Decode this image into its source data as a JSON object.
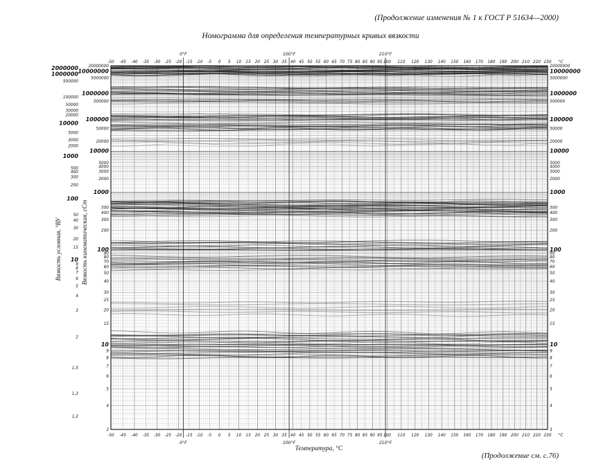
{
  "page": {
    "header_note": "(Продолжение изменения № 1 к ГОСТ Р 51634—2000)",
    "footer_note": "(Продолжение см. с.76)"
  },
  "chart_data": {
    "type": "line",
    "title": "Номограмма для определения температурных кривых вязкости",
    "xlabel": "Температура, °С",
    "ylabel_inner": "Вязкость кинематическая, сСт",
    "ylabel_outer": "Вязкость условная, °ВУ",
    "x_axis": {
      "unit": "°С",
      "min": -50,
      "max": 230,
      "scale": "log10(T + 273.15 K)",
      "labels": [
        -50,
        -45,
        -40,
        -35,
        -30,
        -25,
        -20,
        -15,
        -10,
        -5,
        0,
        5,
        10,
        15,
        20,
        25,
        30,
        35,
        40,
        45,
        50,
        55,
        60,
        65,
        70,
        75,
        80,
        85,
        90,
        95,
        100,
        110,
        120,
        130,
        140,
        150,
        160,
        170,
        180,
        190,
        200,
        210,
        220,
        230
      ]
    },
    "fahrenheit_marks": [
      {
        "label": "0°F",
        "celsius": -17.8
      },
      {
        "label": "100°F",
        "celsius": 37.8
      },
      {
        "label": "210°F",
        "celsius": 98.9
      }
    ],
    "y_axis_cst": {
      "unit": "сСт",
      "min": 3,
      "max": 20000000,
      "scale": "log10(log10(v + 0.7))",
      "ticks": [
        20000000,
        10000000,
        5000000,
        1000000,
        500000,
        100000,
        50000,
        20000,
        10000,
        5000,
        4000,
        3000,
        2000,
        1000,
        500,
        400,
        300,
        200,
        100,
        90,
        80,
        70,
        60,
        50,
        40,
        30,
        25,
        20,
        15,
        10,
        9,
        8,
        7,
        6,
        5,
        4,
        3
      ]
    },
    "y_axis_vu": {
      "unit": "°ВУ",
      "ticks": [
        {
          "label": "2000000",
          "cst": 14620000
        },
        {
          "label": "1000000",
          "cst": 7310000
        },
        {
          "label": "500000",
          "cst": 3655000
        },
        {
          "label": "100000",
          "cst": 731000
        },
        {
          "label": "50000",
          "cst": 365500
        },
        {
          "label": "30000",
          "cst": 219300
        },
        {
          "label": "20000",
          "cst": 146200
        },
        {
          "label": "10000",
          "cst": 73100
        },
        {
          "label": "5000",
          "cst": 36550
        },
        {
          "label": "3000",
          "cst": 21930
        },
        {
          "label": "2000",
          "cst": 14620
        },
        {
          "label": "1000",
          "cst": 7310
        },
        {
          "label": "500",
          "cst": 3655
        },
        {
          "label": "400",
          "cst": 2924
        },
        {
          "label": "300",
          "cst": 2193
        },
        {
          "label": "200",
          "cst": 1462
        },
        {
          "label": "100",
          "cst": 731
        },
        {
          "label": "50",
          "cst": 365
        },
        {
          "label": "40",
          "cst": 292
        },
        {
          "label": "30",
          "cst": 219
        },
        {
          "label": "20",
          "cst": 146
        },
        {
          "label": "15",
          "cst": 109
        },
        {
          "label": "10",
          "cst": 72.5
        },
        {
          "label": "9",
          "cst": 65.1
        },
        {
          "label": "8",
          "cst": 57.7
        },
        {
          "label": "7",
          "cst": 50.3
        },
        {
          "label": "6",
          "cst": 42.8
        },
        {
          "label": "5",
          "cst": 35.3
        },
        {
          "label": "4",
          "cst": 27.7
        },
        {
          "label": "3",
          "cst": 19.8
        },
        {
          "label": "2",
          "cst": 11.5
        },
        {
          "label": "1,5",
          "cst": 6.8
        },
        {
          "label": "1,3",
          "cst": 4.7
        },
        {
          "label": "1,2",
          "cst": 3.5
        }
      ],
      "bold_labels": [
        "2000000",
        "1000000",
        "10000",
        "1000",
        "100",
        "10"
      ]
    },
    "curve_bands": [
      {
        "cst_min": 7000000,
        "cst_max": 19000000,
        "lines": 24,
        "opacity": 0.5
      },
      {
        "cst_min": 900000,
        "cst_max": 1900000,
        "lines": 14,
        "opacity": 0.45
      },
      {
        "cst_min": 420000,
        "cst_max": 620000,
        "lines": 8,
        "opacity": 0.35
      },
      {
        "cst_min": 100000,
        "cst_max": 160000,
        "lines": 12,
        "opacity": 0.45
      },
      {
        "cst_min": 45000,
        "cst_max": 75000,
        "lines": 12,
        "opacity": 0.45
      },
      {
        "cst_min": 15000,
        "cst_max": 24000,
        "lines": 7,
        "opacity": 0.3
      },
      {
        "cst_min": 350,
        "cst_max": 680,
        "lines": 28,
        "opacity": 0.5
      },
      {
        "cst_min": 100,
        "cst_max": 135,
        "lines": 12,
        "opacity": 0.45
      },
      {
        "cst_min": 55,
        "cst_max": 80,
        "lines": 14,
        "opacity": 0.45
      },
      {
        "cst_min": 18,
        "cst_max": 24,
        "lines": 6,
        "opacity": 0.3
      },
      {
        "cst_min": 8,
        "cst_max": 12.5,
        "lines": 26,
        "opacity": 0.5
      }
    ],
    "grid": {
      "mantissa_low": [
        1,
        1.1,
        1.2,
        1.3,
        1.4,
        1.5,
        1.6,
        1.7,
        1.8,
        1.9,
        2,
        2.2,
        2.4,
        2.6,
        2.8,
        3,
        3.2,
        3.4,
        3.6,
        3.8,
        4,
        4.25,
        4.5,
        4.75,
        5,
        5.25,
        5.5,
        5.75,
        6,
        6.25,
        6.5,
        6.75,
        7,
        7.25,
        7.5,
        7.75,
        8,
        8.25,
        8.5,
        8.75,
        9,
        9.25,
        9.5,
        9.75
      ],
      "mantissa_mid": [
        1,
        1.25,
        1.5,
        1.75,
        2,
        2.25,
        2.5,
        2.75,
        3,
        3.25,
        3.5,
        3.75,
        4,
        4.5,
        5,
        5.5,
        6,
        6.5,
        7,
        7.5,
        8,
        8.5,
        9,
        9.5
      ],
      "mantissa_high": [
        1,
        1.5,
        2,
        2.5,
        3,
        3.5,
        4,
        4.5,
        5,
        6,
        7,
        8,
        9
      ],
      "ink_color": "#111111"
    }
  }
}
